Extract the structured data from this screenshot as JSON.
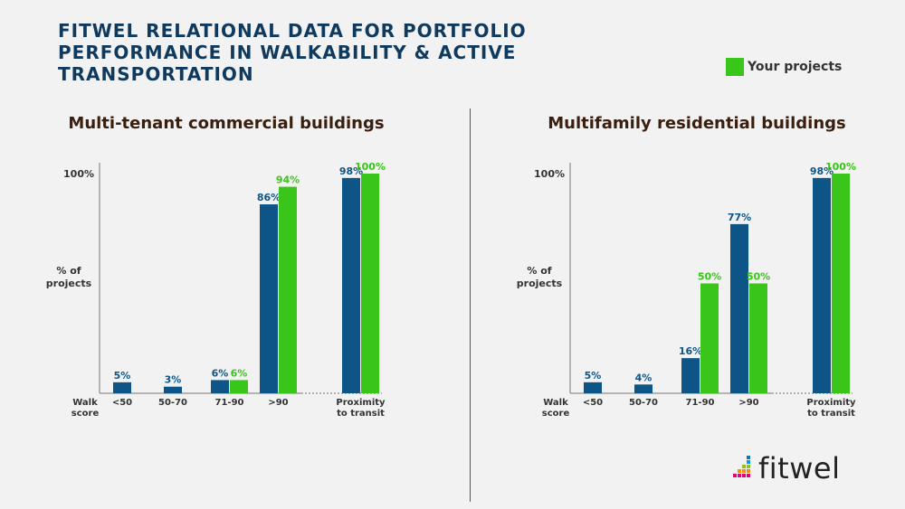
{
  "page": {
    "title_lines": [
      "FITWEL RELATIONAL DATA FOR PORTFOLIO",
      "PERFORMANCE IN WALKABILITY & ACTIVE",
      "TRANSPORTATION"
    ],
    "legend_label": "Your projects",
    "logo_text": "fitwel"
  },
  "colors": {
    "benchmark": "#0e5587",
    "yours": "#39c51a"
  },
  "chart_data": [
    {
      "type": "bar",
      "title": "Multi-tenant commercial buildings",
      "ylabel": [
        "% of",
        "projects"
      ],
      "ytick_label": "100%",
      "xlabel": [
        "Walk",
        "score"
      ],
      "ylim": [
        0,
        100
      ],
      "categories": [
        [
          "<50"
        ],
        [
          "50-70"
        ],
        [
          "71-90"
        ],
        [
          ">90"
        ],
        [
          "Proximity",
          "to transit"
        ]
      ],
      "series": [
        {
          "values": [
            5,
            3,
            6,
            86,
            98
          ],
          "labels": [
            "5%",
            "3%",
            "6%",
            "86%",
            "98%"
          ]
        },
        {
          "name": "Your projects",
          "values": [
            null,
            null,
            6,
            94,
            100
          ],
          "labels": [
            null,
            null,
            "6%",
            "94%",
            "100%"
          ]
        }
      ]
    },
    {
      "type": "bar",
      "title": "Multifamily residential buildings",
      "ylabel": [
        "% of",
        "projects"
      ],
      "ytick_label": "100%",
      "xlabel": [
        "Walk",
        "score"
      ],
      "ylim": [
        0,
        100
      ],
      "categories": [
        [
          "<50"
        ],
        [
          "50-70"
        ],
        [
          "71-90"
        ],
        [
          ">90"
        ],
        [
          "Proximity",
          "to transit"
        ]
      ],
      "series": [
        {
          "values": [
            5,
            4,
            16,
            77,
            98
          ],
          "labels": [
            "5%",
            "4%",
            "16%",
            "77%",
            "98%"
          ]
        },
        {
          "name": "Your projects",
          "values": [
            null,
            null,
            50,
            50,
            100
          ],
          "labels": [
            null,
            null,
            "50%",
            "50%",
            "100%"
          ]
        }
      ]
    }
  ]
}
